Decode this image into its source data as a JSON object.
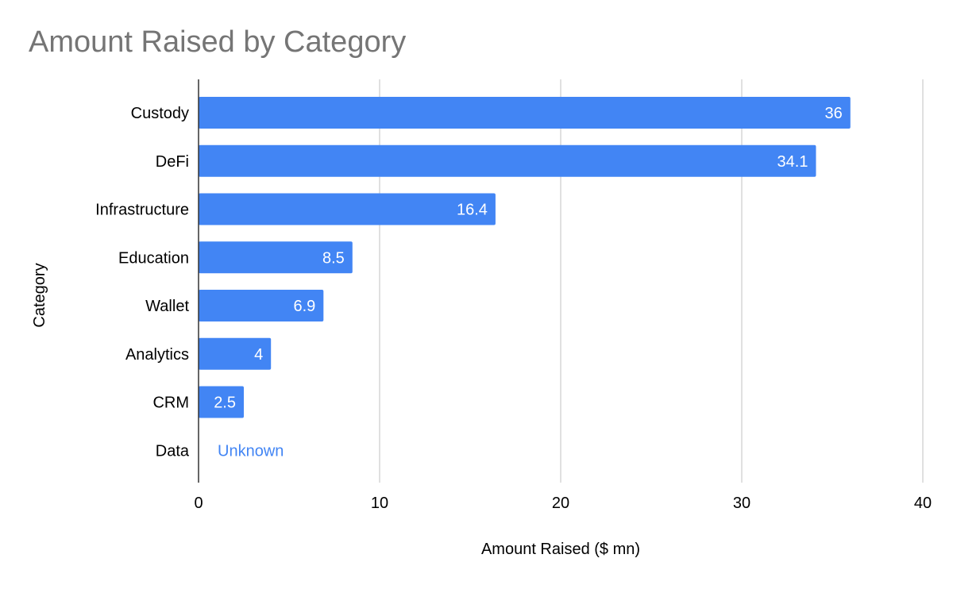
{
  "chart_data": {
    "type": "bar",
    "orientation": "horizontal",
    "title": "Amount Raised by Category",
    "xlabel": "Amount Raised ($ mn)",
    "ylabel": "Category",
    "categories": [
      "Custody",
      "DeFi",
      "Infrastructure",
      "Education",
      "Wallet",
      "Analytics",
      "CRM",
      "Data"
    ],
    "values": [
      36,
      34.1,
      16.4,
      8.5,
      6.9,
      4,
      2.5,
      null
    ],
    "data_labels": [
      "36",
      "34.1",
      "16.4",
      "8.5",
      "6.9",
      "4",
      "2.5",
      "Unknown"
    ],
    "xlim": [
      0,
      40
    ],
    "xticks": [
      "0",
      "10",
      "20",
      "30",
      "40"
    ],
    "grid": "vertical",
    "legend": "none",
    "colors": {
      "bar": "#4285f4",
      "grid": "#cccccc",
      "title": "#757575",
      "missing_label": "#4285f4"
    }
  }
}
